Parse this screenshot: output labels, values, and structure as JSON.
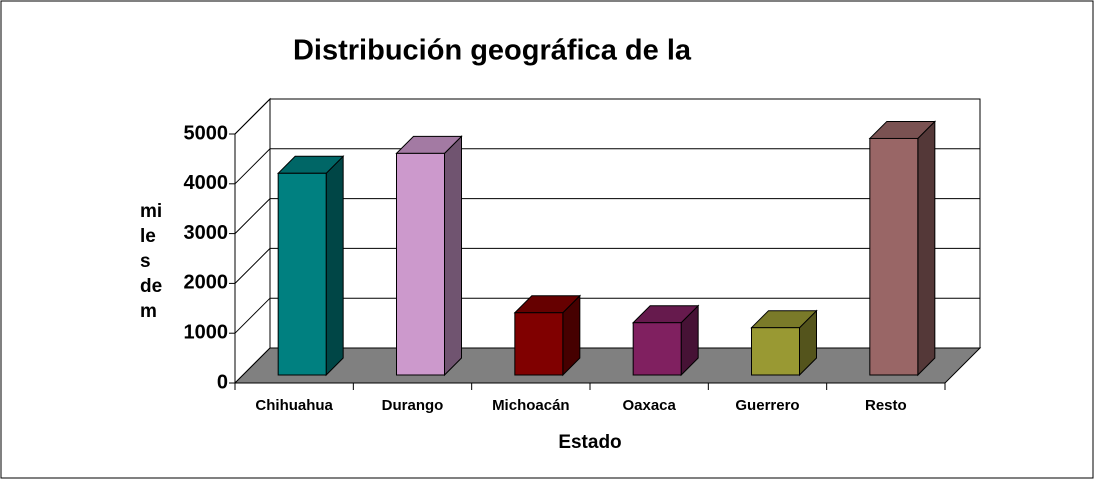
{
  "chart_data": {
    "type": "bar3d",
    "title": "Distribución geográfica de la",
    "ylabel_lines": [
      "mi",
      "le",
      "s",
      "de",
      "m"
    ],
    "xlabel": "Estado",
    "categories": [
      "Chihuahua",
      "Durango",
      "Michoacán",
      "Oaxaca",
      "Guerrero",
      "Resto"
    ],
    "values": [
      4050,
      4450,
      1250,
      1050,
      950,
      4750
    ],
    "colors": [
      "#008080",
      "#cc99cc",
      "#800000",
      "#802060",
      "#999933",
      "#996666"
    ],
    "ylim": [
      0,
      5000
    ],
    "yticks": [
      0,
      1000,
      2000,
      3000,
      4000,
      5000
    ],
    "grid": true
  }
}
